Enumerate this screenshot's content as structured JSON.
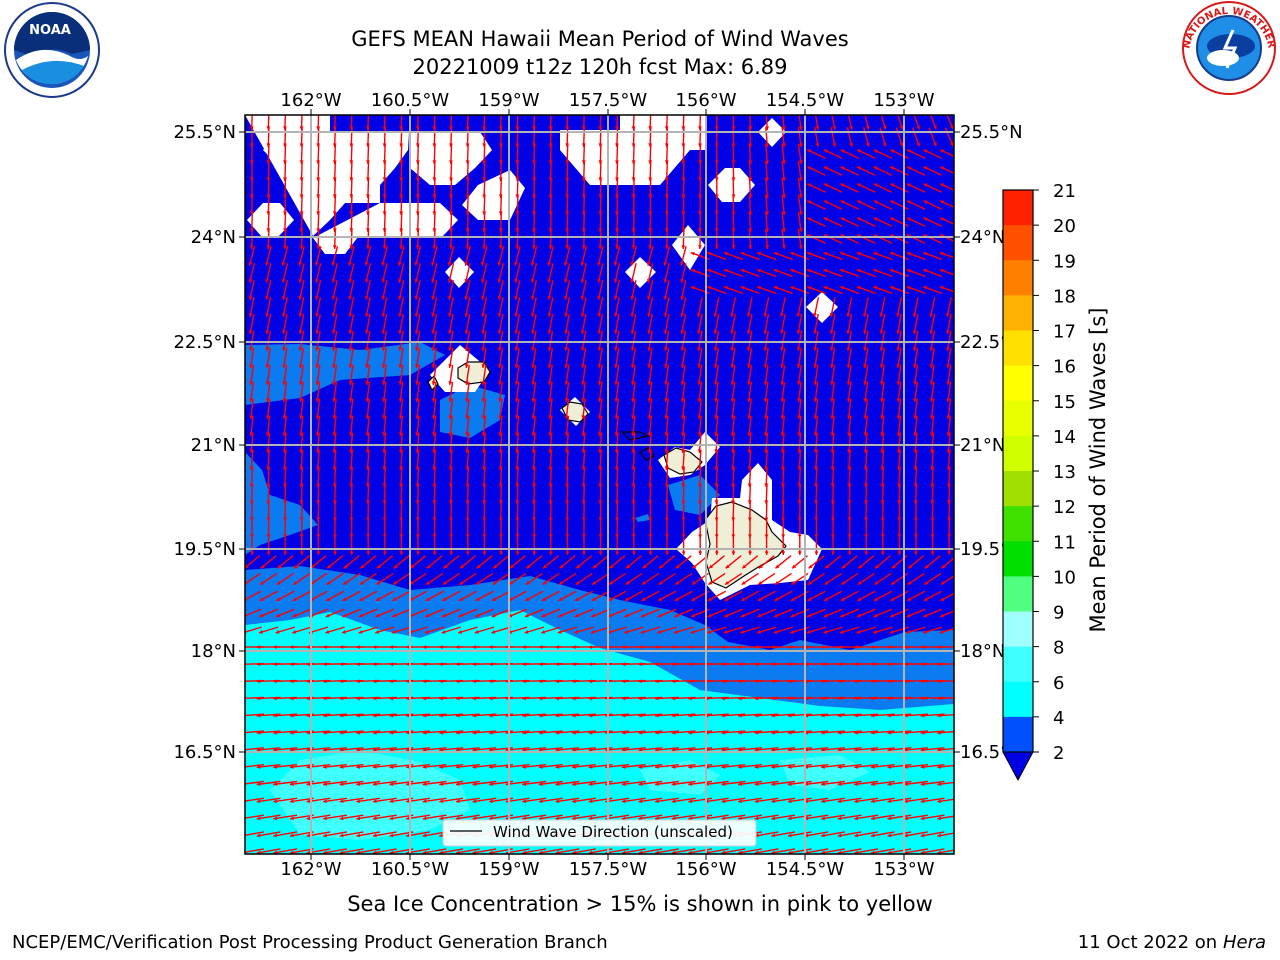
{
  "header": {
    "title_line1": "GEFS MEAN Hawaii Mean Period of Wind Waves",
    "title_line2": "20221009 t12z 120h fcst   Max: 6.89"
  },
  "logos": {
    "left": "noaa-logo-icon",
    "left_text": "NOAA",
    "right": "nws-logo-icon",
    "right_text": "NATIONAL WEATHER SERVICE"
  },
  "map": {
    "lon_labels": [
      "162°W",
      "160.5°W",
      "159°W",
      "157.5°W",
      "156°W",
      "154.5°W",
      "153°W"
    ],
    "lat_labels": [
      "25.5°N",
      "24°N",
      "22.5°N",
      "21°N",
      "19.5°N",
      "18°N",
      "16.5°N"
    ],
    "legend_label": "Wind Wave Direction (unscaled)",
    "colors": {
      "deep": "#0000e6",
      "mid": "#0a7bf0",
      "light": "#00ffff",
      "pale": "#40ffff",
      "land": "#efefd8",
      "arrow": "#ff0000",
      "grid": "#b4b4b4"
    }
  },
  "colorbar": {
    "label": "Mean Period of Wind Waves [s]",
    "ticks": [
      "2",
      "4",
      "6",
      "8",
      "9",
      "10",
      "11",
      "12",
      "13",
      "14",
      "15",
      "16",
      "17",
      "18",
      "19",
      "20",
      "21"
    ],
    "colors": [
      "#0050ff",
      "#00ffff",
      "#40ffff",
      "#a0ffff",
      "#50ff80",
      "#00e000",
      "#40e000",
      "#a0e000",
      "#d0ff00",
      "#e8ff00",
      "#ffff00",
      "#ffe000",
      "#ffb000",
      "#ff8000",
      "#ff5000",
      "#ff2000"
    ]
  },
  "caption": "Sea Ice Concentration > 15% is shown in pink to yellow",
  "footer": {
    "left": "NCEP/EMC/Verification Post Processing Product Generation Branch",
    "date": "11 Oct 2022 on ",
    "machine": "Hera"
  }
}
